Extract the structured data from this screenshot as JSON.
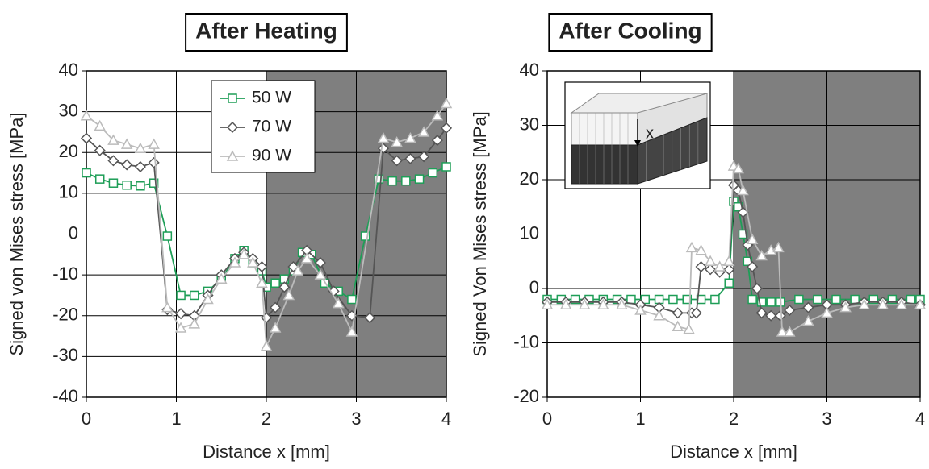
{
  "chart_data": [
    {
      "type": "line",
      "title": "After Heating",
      "xlabel": "Distance x   [mm]",
      "ylabel": "Signed von Mises stress   [MPa]",
      "xlim": [
        0,
        4
      ],
      "xticks": [
        0,
        1,
        2,
        3,
        4
      ],
      "ylim": [
        -40,
        40
      ],
      "yticks": [
        -40,
        -30,
        -20,
        -10,
        0,
        10,
        20,
        30,
        40
      ],
      "grid": true,
      "shaded_xrange": [
        2,
        4
      ],
      "shade_color": "#7f7f7f",
      "legend": "upper center",
      "series": [
        {
          "name": "50 W",
          "color": "#1e9e57",
          "marker": "square",
          "x": [
            0,
            0.15,
            0.3,
            0.45,
            0.6,
            0.75,
            0.9,
            1.05,
            1.2,
            1.35,
            1.5,
            1.65,
            1.75,
            1.85,
            1.95,
            2.0,
            2.1,
            2.2,
            2.3,
            2.4,
            2.5,
            2.65,
            2.8,
            2.95,
            3.1,
            3.25,
            3.4,
            3.55,
            3.7,
            3.85,
            4
          ],
          "values": [
            15,
            13.5,
            12.5,
            12,
            11.8,
            12.5,
            -0.5,
            -15,
            -15,
            -14,
            -11,
            -6,
            -4,
            -7,
            -9,
            -13,
            -12,
            -11,
            -9,
            -4.5,
            -5,
            -12,
            -14,
            -16,
            -0.5,
            13.5,
            13,
            13,
            13.5,
            15,
            16.5
          ]
        },
        {
          "name": "70 W",
          "color": "#555555",
          "marker": "diamond",
          "x": [
            0,
            0.15,
            0.3,
            0.45,
            0.6,
            0.75,
            0.9,
            1.05,
            1.2,
            1.35,
            1.5,
            1.65,
            1.75,
            1.85,
            1.95,
            2.0,
            2.1,
            2.2,
            2.3,
            2.45,
            2.6,
            2.75,
            2.95,
            3.15,
            3.3,
            3.45,
            3.6,
            3.75,
            3.9,
            4
          ],
          "values": [
            23.5,
            20.5,
            18,
            17,
            16.5,
            17.5,
            -18.5,
            -19.5,
            -20,
            -15,
            -10,
            -6,
            -4.5,
            -6,
            -8,
            -20.5,
            -18,
            -13,
            -8,
            -4,
            -7,
            -14,
            -20,
            -20.5,
            21,
            18,
            18.5,
            19,
            23,
            26
          ]
        },
        {
          "name": "90 W",
          "color": "#bbbbbb",
          "marker": "triangle",
          "x": [
            0,
            0.15,
            0.3,
            0.45,
            0.6,
            0.75,
            0.9,
            1.05,
            1.2,
            1.35,
            1.5,
            1.65,
            1.75,
            1.85,
            1.95,
            2.0,
            2.1,
            2.25,
            2.35,
            2.45,
            2.6,
            2.8,
            2.95,
            3.3,
            3.45,
            3.6,
            3.75,
            3.9,
            4
          ],
          "values": [
            29,
            26.5,
            23,
            22,
            21,
            22,
            -18,
            -23,
            -22,
            -16,
            -11,
            -7,
            -5,
            -7,
            -12,
            -27.5,
            -23,
            -15,
            -9,
            -6,
            -10,
            -17,
            -24,
            23.5,
            22.5,
            23.5,
            25,
            29,
            32
          ]
        }
      ]
    },
    {
      "type": "line",
      "title": "After Cooling",
      "xlabel": "Distance x   [mm]",
      "ylabel": "Signed Von Mises stress   [MPa]",
      "inset_label": "x",
      "xlim": [
        0,
        4
      ],
      "xticks": [
        0,
        1,
        2,
        3,
        4
      ],
      "ylim": [
        -20,
        40
      ],
      "yticks": [
        -20,
        -10,
        0,
        10,
        20,
        30,
        40
      ],
      "grid": true,
      "shaded_xrange": [
        2,
        4
      ],
      "shade_color": "#7f7f7f",
      "series": [
        {
          "name": "50 W",
          "color": "#1e9e57",
          "marker": "square",
          "x": [
            0,
            0.15,
            0.3,
            0.45,
            0.6,
            0.75,
            0.9,
            1.05,
            1.2,
            1.35,
            1.5,
            1.65,
            1.8,
            1.95,
            2.0,
            2.05,
            2.1,
            2.15,
            2.2,
            2.3,
            2.4,
            2.5,
            2.7,
            2.9,
            3.1,
            3.3,
            3.5,
            3.7,
            3.9,
            4
          ],
          "values": [
            -2,
            -2,
            -2,
            -2,
            -2,
            -2,
            -2,
            -2,
            -2,
            -2,
            -2,
            -2,
            -2,
            1,
            16,
            15,
            10,
            5,
            -2,
            -2.5,
            -2.5,
            -2.5,
            -2,
            -2,
            -2,
            -2,
            -2,
            -2,
            -2,
            -2
          ]
        },
        {
          "name": "70 W",
          "color": "#555555",
          "marker": "diamond",
          "x": [
            0,
            0.2,
            0.4,
            0.6,
            0.8,
            1.0,
            1.2,
            1.4,
            1.55,
            1.6,
            1.65,
            1.75,
            1.85,
            1.95,
            2.0,
            2.05,
            2.1,
            2.15,
            2.2,
            2.25,
            2.3,
            2.4,
            2.5,
            2.6,
            2.8,
            3.0,
            3.2,
            3.4,
            3.6,
            3.8,
            4
          ],
          "values": [
            -2.5,
            -2.5,
            -2.5,
            -2.5,
            -2.5,
            -3,
            -3.5,
            -4.5,
            -4.5,
            -4.5,
            4,
            3.5,
            3,
            3.5,
            19,
            18,
            14,
            8,
            4,
            0,
            -4.5,
            -5,
            -5,
            -4,
            -3.5,
            -3,
            -3,
            -2.5,
            -2.5,
            -2.5,
            -3
          ]
        },
        {
          "name": "90 W",
          "color": "#bbbbbb",
          "marker": "triangle",
          "x": [
            0,
            0.2,
            0.4,
            0.6,
            0.8,
            1.0,
            1.2,
            1.4,
            1.52,
            1.55,
            1.65,
            1.75,
            1.85,
            1.95,
            2.0,
            2.05,
            2.1,
            2.2,
            2.3,
            2.4,
            2.48,
            2.52,
            2.6,
            2.8,
            3.0,
            3.2,
            3.4,
            3.6,
            3.8,
            4
          ],
          "values": [
            -3,
            -3,
            -3,
            -3,
            -3,
            -4,
            -5,
            -7,
            -7.5,
            7.5,
            7,
            5,
            4,
            5,
            22.5,
            22,
            18,
            9,
            6,
            7,
            7.5,
            -8,
            -8,
            -6,
            -4.5,
            -3.5,
            -3,
            -3,
            -3,
            -3
          ]
        }
      ]
    }
  ]
}
